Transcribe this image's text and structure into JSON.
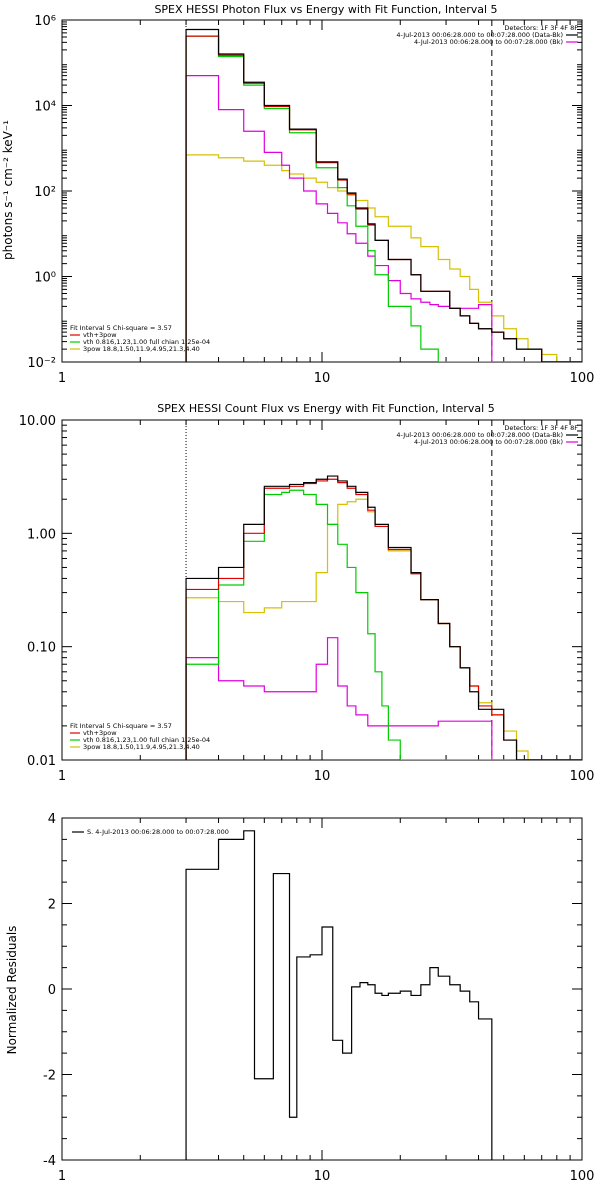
{
  "chart_data": [
    {
      "type": "line",
      "title": "SPEX HESSI Photon Flux vs Energy with Fit Function, Interval 5",
      "xlabel": "",
      "ylabel": "photons s⁻¹ cm⁻² keV⁻¹",
      "xscale": "log",
      "yscale": "log",
      "xlim": [
        1,
        100
      ],
      "ylim": [
        0.01,
        1000000
      ],
      "x_ticks": [
        {
          "v": 1,
          "label": "1"
        },
        {
          "v": 10,
          "label": "10"
        },
        {
          "v": 100,
          "label": "100"
        }
      ],
      "y_ticks": [
        {
          "v": 0.01,
          "label": "10⁻²"
        },
        {
          "v": 1,
          "label": "10⁰"
        },
        {
          "v": 100,
          "label": "10²"
        },
        {
          "v": 10000,
          "label": "10⁴"
        },
        {
          "v": 1000000,
          "label": "10⁶"
        }
      ],
      "vlines": [
        {
          "x": 3.0,
          "style": "dotted",
          "color": "#000000"
        },
        {
          "x": 45.0,
          "style": "dashed",
          "color": "#000000"
        }
      ],
      "edges": [
        3.0,
        3.5,
        4.0,
        4.5,
        5.0,
        5.5,
        6.0,
        6.5,
        7.0,
        7.5,
        8.0,
        8.5,
        9.0,
        9.5,
        10.0,
        10.5,
        11.0,
        11.5,
        12.0,
        12.5,
        13.0,
        13.5,
        14.0,
        15.0,
        16.0,
        17.0,
        18.0,
        20.0,
        22.0,
        24.0,
        26.0,
        28.0,
        31.0,
        34.0,
        37.0,
        40.0,
        45.0,
        50.0,
        56.0,
        62.0,
        70.0,
        80.0,
        90.0,
        100.0
      ],
      "series": [
        {
          "name": "Data",
          "color": "#000000",
          "values": [
            600000,
            600000,
            160000,
            160000,
            35000,
            35000,
            10000,
            10000,
            10000,
            2800,
            2800,
            2800,
            2800,
            480,
            480,
            480,
            480,
            190,
            190,
            90,
            90,
            40,
            40,
            17,
            7,
            7,
            2.5,
            2.5,
            1.1,
            0.45,
            0.45,
            0.45,
            0.18,
            0.12,
            0.08,
            0.06,
            0.05,
            0.035,
            0.02,
            0.02,
            0.01,
            0.01,
            0.01
          ]
        },
        {
          "name": "vth+3pow",
          "color": "#e00000",
          "values": [
            420000,
            420000,
            150000,
            150000,
            33000,
            33000,
            9500,
            9500,
            9500,
            2700,
            2700,
            2700,
            2700,
            460,
            460,
            460,
            460,
            180,
            180,
            85,
            85,
            38,
            38,
            16,
            7,
            7,
            2.5,
            2.5,
            1.1,
            0.45,
            0.45,
            0.45,
            0.18,
            0.12,
            0.08,
            0.06,
            0.05,
            0.035,
            0.02,
            0.02,
            0.01,
            0.01,
            0.01
          ]
        },
        {
          "name": "vth 0.816,1.23,1.00  full chian 1.25e-04",
          "color": "#00cc00",
          "values": [
            420000,
            420000,
            140000,
            140000,
            30000,
            30000,
            8500,
            8500,
            8500,
            2300,
            2300,
            2300,
            2300,
            350,
            350,
            350,
            350,
            120,
            120,
            45,
            45,
            15,
            15,
            4,
            1.1,
            1.1,
            0.2,
            0.2,
            0.07,
            0.02,
            0.02,
            0.01,
            0.01,
            0.01,
            0.01,
            0.01,
            0.01,
            0.01,
            0.01,
            0.01,
            0.01,
            0.01,
            0.01
          ]
        },
        {
          "name": "3pow 18.8,1.50,11.9,4.95,21.3,4.40",
          "color": "#d6c000",
          "values": [
            700,
            700,
            600,
            600,
            500,
            500,
            400,
            400,
            300,
            250,
            250,
            200,
            200,
            160,
            160,
            120,
            120,
            100,
            100,
            80,
            80,
            60,
            60,
            40,
            25,
            25,
            15,
            15,
            8,
            5,
            5,
            2.5,
            1.5,
            1.0,
            0.5,
            0.25,
            0.12,
            0.06,
            0.035,
            0.02,
            0.015,
            0.01,
            0.01
          ]
        },
        {
          "name": "bk",
          "color": "#e000e0",
          "values": [
            50000,
            50000,
            8000,
            8000,
            2500,
            2500,
            800,
            800,
            400,
            200,
            200,
            100,
            100,
            50,
            50,
            30,
            30,
            18,
            18,
            10,
            10,
            6,
            6,
            3,
            1.8,
            1.8,
            0.8,
            0.4,
            0.3,
            0.25,
            0.22,
            0.2,
            0.18,
            0.18,
            0.18,
            0.22,
            0.01,
            0.01,
            0.01,
            0.01,
            0.01,
            0.01,
            0.01
          ]
        }
      ],
      "legend": {
        "placement": "top-right",
        "heading": "Detectors: 1F 3F 4F 8F",
        "entries": [
          {
            "label": "4-Jul-2013 00:06:28.000 to 00:07:28.000 (Data-Bk)",
            "color": "#000000"
          },
          {
            "label": "4-Jul-2013 00:06:28.000 to 00:07:28.000 (Bk)",
            "color": "#e000e0"
          }
        ]
      },
      "fit_legend": {
        "placement": "bottom-left",
        "heading": "Fit Interval 5   Chi-square = 3.57",
        "entries": [
          {
            "label": "vth+3pow",
            "color": "#e00000"
          },
          {
            "label": "vth 0.816,1.23,1.00  full chian 1.25e-04",
            "color": "#00cc00"
          },
          {
            "label": "3pow 18.8,1.50,11.9,4.95,21.3,4.40",
            "color": "#d6c000"
          }
        ]
      }
    },
    {
      "type": "line",
      "title": "SPEX HESSI Count Flux vs Energy with Fit Function, Interval 5",
      "xlabel": "",
      "ylabel": "",
      "xscale": "log",
      "yscale": "log",
      "xlim": [
        1,
        100
      ],
      "ylim": [
        0.01,
        10
      ],
      "x_ticks": [
        {
          "v": 1,
          "label": "1"
        },
        {
          "v": 10,
          "label": "10"
        },
        {
          "v": 100,
          "label": "100"
        }
      ],
      "y_ticks": [
        {
          "v": 0.01,
          "label": "0.01"
        },
        {
          "v": 0.1,
          "label": "0.10"
        },
        {
          "v": 1,
          "label": "1.00"
        },
        {
          "v": 10,
          "label": "10.00"
        }
      ],
      "vlines": [
        {
          "x": 3.0,
          "style": "dotted",
          "color": "#000000"
        },
        {
          "x": 45.0,
          "style": "dashed",
          "color": "#000000"
        }
      ],
      "edges": [
        3.0,
        3.5,
        4.0,
        4.5,
        5.0,
        5.5,
        6.0,
        6.5,
        7.0,
        7.5,
        8.0,
        8.5,
        9.0,
        9.5,
        10.0,
        10.5,
        11.0,
        11.5,
        12.0,
        12.5,
        13.0,
        13.5,
        14.0,
        15.0,
        16.0,
        17.0,
        18.0,
        20.0,
        22.0,
        24.0,
        26.0,
        28.0,
        31.0,
        34.0,
        37.0,
        40.0,
        45.0,
        50.0,
        56.0,
        62.0,
        70.0,
        80.0,
        90.0,
        100.0
      ],
      "series": [
        {
          "name": "Data",
          "color": "#000000",
          "values": [
            0.4,
            0.4,
            0.5,
            0.5,
            1.2,
            1.2,
            2.6,
            2.6,
            2.6,
            2.7,
            2.7,
            2.8,
            2.8,
            3.0,
            3.0,
            3.2,
            3.2,
            2.9,
            2.9,
            2.6,
            2.6,
            2.3,
            2.3,
            1.7,
            1.2,
            1.2,
            0.75,
            0.75,
            0.45,
            0.26,
            0.26,
            0.16,
            0.1,
            0.065,
            0.04,
            0.028,
            0.028,
            0.015,
            0.01,
            0.01,
            0.01,
            0.01,
            0.01
          ]
        },
        {
          "name": "vth+3pow",
          "color": "#e00000",
          "values": [
            0.32,
            0.32,
            0.4,
            0.4,
            1.0,
            1.0,
            2.5,
            2.5,
            2.5,
            2.6,
            2.6,
            2.75,
            2.75,
            2.9,
            2.9,
            3.0,
            3.0,
            2.8,
            2.8,
            2.5,
            2.5,
            2.2,
            2.2,
            1.6,
            1.15,
            1.15,
            0.72,
            0.72,
            0.44,
            0.26,
            0.26,
            0.16,
            0.1,
            0.065,
            0.045,
            0.03,
            0.025,
            0.015,
            0.01,
            0.01,
            0.01,
            0.01,
            0.01
          ]
        },
        {
          "name": "vth 0.816,1.23,1.00  full chian 1.25e-04",
          "color": "#00cc00",
          "values": [
            0.07,
            0.07,
            0.35,
            0.35,
            0.85,
            0.85,
            2.2,
            2.2,
            2.3,
            2.4,
            2.4,
            2.2,
            2.2,
            1.8,
            1.8,
            1.2,
            1.2,
            0.8,
            0.8,
            0.5,
            0.5,
            0.3,
            0.3,
            0.13,
            0.06,
            0.03,
            0.015,
            0.01,
            0.01,
            0.01,
            0.01,
            0.01,
            0.01,
            0.01,
            0.01,
            0.01,
            0.01,
            0.01,
            0.01,
            0.01,
            0.01,
            0.01,
            0.01
          ]
        },
        {
          "name": "3pow 18.8,1.50,11.9,4.95,21.3,4.40",
          "color": "#d6c000",
          "values": [
            0.27,
            0.27,
            0.25,
            0.25,
            0.2,
            0.2,
            0.22,
            0.22,
            0.25,
            0.25,
            0.25,
            0.25,
            0.25,
            0.45,
            0.45,
            1.2,
            1.2,
            1.8,
            1.8,
            1.9,
            1.9,
            2.0,
            2.0,
            1.55,
            1.15,
            1.15,
            0.7,
            0.7,
            0.45,
            0.26,
            0.26,
            0.16,
            0.1,
            0.065,
            0.045,
            0.032,
            0.025,
            0.018,
            0.012,
            0.01,
            0.01,
            0.01,
            0.01
          ]
        },
        {
          "name": "bk",
          "color": "#e000e0",
          "values": [
            0.08,
            0.08,
            0.05,
            0.05,
            0.045,
            0.045,
            0.04,
            0.04,
            0.04,
            0.04,
            0.04,
            0.04,
            0.04,
            0.07,
            0.07,
            0.12,
            0.12,
            0.045,
            0.045,
            0.03,
            0.03,
            0.025,
            0.025,
            0.02,
            0.02,
            0.02,
            0.02,
            0.02,
            0.02,
            0.02,
            0.02,
            0.022,
            0.022,
            0.022,
            0.022,
            0.022,
            0.01,
            0.01,
            0.01,
            0.01,
            0.01,
            0.01,
            0.01
          ]
        }
      ],
      "legend": {
        "placement": "top-right",
        "heading": "Detectors: 1F 3F 4F 8F",
        "entries": [
          {
            "label": "4-Jul-2013 00:06:28.000 to 00:07:28.000 (Data-Bk)",
            "color": "#000000"
          },
          {
            "label": "4-Jul-2013 00:06:28.000 to 00:07:28.000 (Bk)",
            "color": "#e000e0"
          }
        ]
      },
      "fit_legend": {
        "placement": "bottom-left",
        "heading": "Fit Interval 5   Chi-square = 3.57",
        "entries": [
          {
            "label": "vth+3pow",
            "color": "#e00000"
          },
          {
            "label": "vth 0.816,1.23,1.00  full chian 1.25e-04",
            "color": "#00cc00"
          },
          {
            "label": "3pow 18.8,1.50,11.9,4.95,21.3,4.40",
            "color": "#d6c000"
          }
        ]
      }
    },
    {
      "type": "line",
      "title": "",
      "xlabel": "",
      "ylabel": "Normalized Residuals",
      "xscale": "log",
      "yscale": "linear",
      "xlim": [
        1,
        100
      ],
      "ylim": [
        -4,
        4
      ],
      "x_ticks": [
        {
          "v": 1,
          "label": "1"
        },
        {
          "v": 10,
          "label": "10"
        },
        {
          "v": 100,
          "label": "100"
        }
      ],
      "y_ticks": [
        {
          "v": -4,
          "label": "-4"
        },
        {
          "v": -2,
          "label": "-2"
        },
        {
          "v": 0,
          "label": "0"
        },
        {
          "v": 2,
          "label": "2"
        },
        {
          "v": 4,
          "label": "4"
        }
      ],
      "vlines": [],
      "edges": [
        3.0,
        4.0,
        5.0,
        5.5,
        6.0,
        6.5,
        7.0,
        7.5,
        8.0,
        9.0,
        10.0,
        11.0,
        12.0,
        13.0,
        14.0,
        15.0,
        16.0,
        17.0,
        18.0,
        20.0,
        22.0,
        24.0,
        26.0,
        28.0,
        31.0,
        34.0,
        37.0,
        40.0,
        45.0
      ],
      "series": [
        {
          "name": "S. 4-Jul-2013 00:06:28.000 to 00:07:28.000",
          "color": "#000000",
          "values": [
            2.8,
            3.5,
            3.7,
            -2.1,
            -2.1,
            2.7,
            2.7,
            -3.0,
            0.75,
            0.8,
            1.45,
            -1.2,
            -1.5,
            0.05,
            0.15,
            0.1,
            -0.1,
            -0.15,
            -0.1,
            -0.05,
            -0.15,
            0.1,
            0.5,
            0.3,
            0.1,
            -0.05,
            -0.3,
            -0.7
          ]
        }
      ],
      "legend": {
        "placement": "top-left",
        "heading": "",
        "entries": [
          {
            "label": "S. 4-Jul-2013 00:06:28.000 to 00:07:28.000",
            "color": "#000000"
          }
        ]
      },
      "fit_legend": null
    }
  ]
}
